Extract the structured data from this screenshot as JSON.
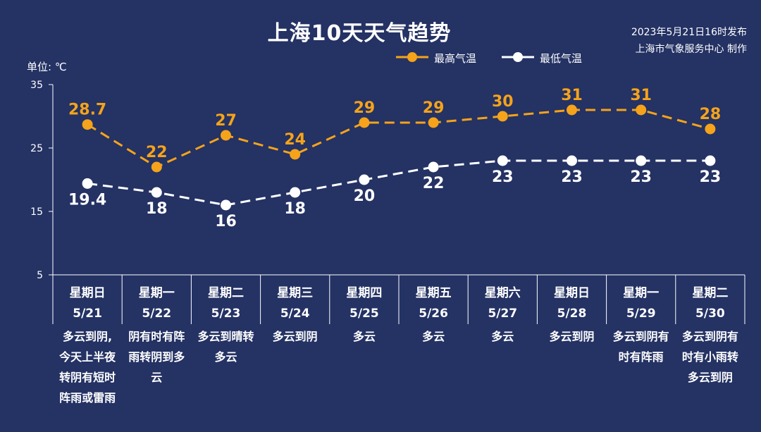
{
  "header": {
    "title": "上海10天天气趋势",
    "publish_line1": "2023年5月21日16时发布",
    "publish_line2": "上海市气象服务中心 制作"
  },
  "unit_label": "单位: ℃",
  "legend": {
    "high_label": "最高气温",
    "low_label": "最低气温"
  },
  "colors": {
    "background": "#243264",
    "high": "#f5a31a",
    "low": "#ffffff",
    "axis": "#ffffff"
  },
  "chart_data": {
    "type": "line",
    "title": "上海10天天气趋势",
    "ylabel": "单位: ℃",
    "ylim": [
      5,
      35
    ],
    "yticks": [
      5,
      15,
      25,
      35
    ],
    "grid": false,
    "legend_position": "top-right",
    "categories": [
      {
        "weekday": "星期日",
        "date": "5/21"
      },
      {
        "weekday": "星期一",
        "date": "5/22"
      },
      {
        "weekday": "星期二",
        "date": "5/23"
      },
      {
        "weekday": "星期三",
        "date": "5/24"
      },
      {
        "weekday": "星期四",
        "date": "5/25"
      },
      {
        "weekday": "星期五",
        "date": "5/26"
      },
      {
        "weekday": "星期六",
        "date": "5/27"
      },
      {
        "weekday": "星期日",
        "date": "5/28"
      },
      {
        "weekday": "星期一",
        "date": "5/29"
      },
      {
        "weekday": "星期二",
        "date": "5/30"
      }
    ],
    "series": [
      {
        "name": "最高气温",
        "color": "#f5a31a",
        "values": [
          28.7,
          22,
          27,
          24,
          29,
          29,
          30,
          31,
          31,
          28
        ],
        "labels": [
          "28.7",
          "22",
          "27",
          "24",
          "29",
          "29",
          "30",
          "31",
          "31",
          "28"
        ]
      },
      {
        "name": "最低气温",
        "color": "#ffffff",
        "values": [
          19.4,
          18,
          16,
          18,
          20,
          22,
          23,
          23,
          23,
          23
        ],
        "labels": [
          "19.4",
          "18",
          "16",
          "18",
          "20",
          "22",
          "23",
          "23",
          "23",
          "23"
        ]
      }
    ],
    "weather": [
      [
        "多云到阴,",
        "今天上半夜",
        "转阴有短时",
        "阵雨或雷雨"
      ],
      [
        "阴有时有阵",
        "雨转阴到多",
        "云"
      ],
      [
        "多云到晴转",
        "多云"
      ],
      [
        "多云到阴"
      ],
      [
        "多云"
      ],
      [
        "多云"
      ],
      [
        "多云"
      ],
      [
        "多云到阴"
      ],
      [
        "多云到阴有",
        "时有阵雨"
      ],
      [
        "多云到阴有",
        "时有小雨转",
        "多云到阴"
      ]
    ]
  }
}
